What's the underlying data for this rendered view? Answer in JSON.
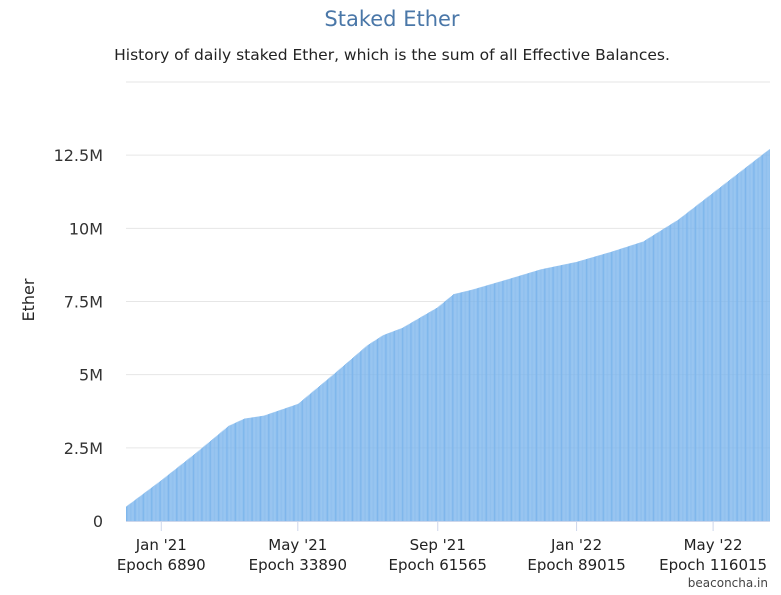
{
  "chart_data": {
    "type": "bar",
    "title": "Staked Ether",
    "subtitle": "History of daily staked Ether, which is the sum of all Effective Balances.",
    "ylabel": "Ether",
    "xlabel": "",
    "ylim": [
      0,
      15000000
    ],
    "y_ticks": [
      {
        "value": 0,
        "label": "0"
      },
      {
        "value": 2500000,
        "label": "2.5M"
      },
      {
        "value": 5000000,
        "label": "5M"
      },
      {
        "value": 7500000,
        "label": "7.5M"
      },
      {
        "value": 10000000,
        "label": "10M"
      },
      {
        "value": 12500000,
        "label": "12.5M"
      }
    ],
    "x_ticks": [
      {
        "date": "2021-01-01",
        "label": "Jan '21",
        "epoch_label": "Epoch 6890"
      },
      {
        "date": "2021-05-01",
        "label": "May '21",
        "epoch_label": "Epoch 33890"
      },
      {
        "date": "2021-09-01",
        "label": "Sep '21",
        "epoch_label": "Epoch 61565"
      },
      {
        "date": "2022-01-01",
        "label": "Jan '22",
        "epoch_label": "Epoch 89015"
      },
      {
        "date": "2022-05-01",
        "label": "May '22",
        "epoch_label": "Epoch 116015"
      }
    ],
    "x_range": [
      "2020-12-01",
      "2022-06-20"
    ],
    "grid": true,
    "bar_color": "#7cb5ec",
    "series": [
      {
        "values_are": "daily staked ether, sampled at anchor dates (interpolated daily)",
        "points": [
          {
            "date": "2020-12-01",
            "value": 500000
          },
          {
            "date": "2021-01-01",
            "value": 1400000
          },
          {
            "date": "2021-02-01",
            "value": 2350000
          },
          {
            "date": "2021-03-01",
            "value": 3250000
          },
          {
            "date": "2021-03-15",
            "value": 3500000
          },
          {
            "date": "2021-04-01",
            "value": 3600000
          },
          {
            "date": "2021-05-01",
            "value": 4000000
          },
          {
            "date": "2021-06-01",
            "value": 5000000
          },
          {
            "date": "2021-07-01",
            "value": 6000000
          },
          {
            "date": "2021-07-15",
            "value": 6350000
          },
          {
            "date": "2021-08-01",
            "value": 6600000
          },
          {
            "date": "2021-09-01",
            "value": 7300000
          },
          {
            "date": "2021-09-15",
            "value": 7750000
          },
          {
            "date": "2021-10-01",
            "value": 7900000
          },
          {
            "date": "2021-11-01",
            "value": 8250000
          },
          {
            "date": "2021-12-01",
            "value": 8600000
          },
          {
            "date": "2022-01-01",
            "value": 8850000
          },
          {
            "date": "2022-02-01",
            "value": 9200000
          },
          {
            "date": "2022-03-01",
            "value": 9550000
          },
          {
            "date": "2022-04-01",
            "value": 10300000
          },
          {
            "date": "2022-05-01",
            "value": 11200000
          },
          {
            "date": "2022-06-20",
            "value": 12700000
          }
        ]
      }
    ]
  },
  "credit": "beaconcha.in"
}
